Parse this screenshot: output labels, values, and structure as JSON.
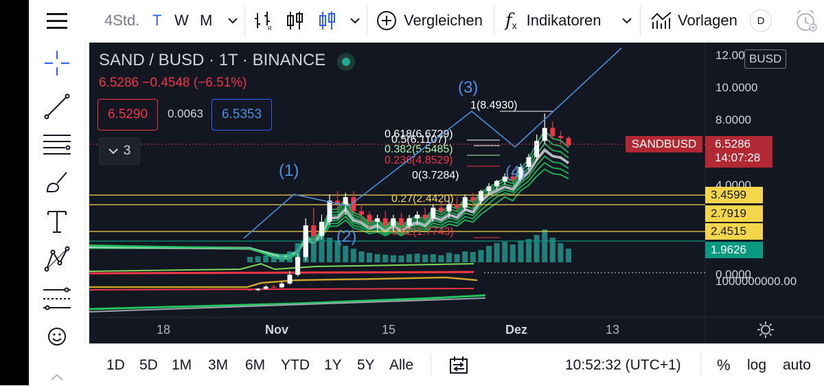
{
  "toolbar": {
    "interval": "4Std.",
    "quick_intervals": [
      "T",
      "W",
      "M"
    ],
    "compare_label": "Vergleichen",
    "indicators_label": "Indikatoren",
    "templates_label": "Vorlagen",
    "avatar_letter": "D"
  },
  "legend": {
    "title": "SAND / BUSD · 1T · BINANCE",
    "change": "6.5286 −0.4548 (−6.51%)",
    "bid": "6.5290",
    "spread": "0.0063",
    "ask": "6.5353",
    "indicator_count": "3"
  },
  "chart_data": {
    "type": "candlestick",
    "symbol": "SAND / BUSD",
    "interval": "1T",
    "exchange": "BINANCE",
    "last_price": 6.5286,
    "change": -0.4548,
    "change_percent": -6.51,
    "y_axis_labels": [
      "12.00",
      "10.0000",
      "8.0000",
      "4.0000",
      "0.0000",
      "1000000000.00"
    ],
    "x_axis_labels": [
      "18",
      "Nov",
      "15",
      "Dez",
      "13"
    ],
    "candles": [
      {
        "o": 0.78,
        "h": 0.8,
        "l": 0.74,
        "c": 0.76
      },
      {
        "o": 0.76,
        "h": 0.82,
        "l": 0.74,
        "c": 0.8
      },
      {
        "o": 0.8,
        "h": 0.9,
        "l": 0.78,
        "c": 0.86
      },
      {
        "o": 0.86,
        "h": 0.92,
        "l": 0.82,
        "c": 0.84
      },
      {
        "o": 0.84,
        "h": 1.0,
        "l": 0.82,
        "c": 0.95
      },
      {
        "o": 0.95,
        "h": 1.3,
        "l": 0.92,
        "c": 1.2
      },
      {
        "o": 1.2,
        "h": 1.8,
        "l": 1.15,
        "c": 1.7
      },
      {
        "o": 1.7,
        "h": 2.8,
        "l": 1.6,
        "c": 2.6
      },
      {
        "o": 2.6,
        "h": 3.1,
        "l": 2.1,
        "c": 2.3
      },
      {
        "o": 2.3,
        "h": 2.9,
        "l": 2.2,
        "c": 2.7
      },
      {
        "o": 2.7,
        "h": 3.5,
        "l": 2.6,
        "c": 3.3
      },
      {
        "o": 3.3,
        "h": 3.7,
        "l": 3.0,
        "c": 3.2
      },
      {
        "o": 3.2,
        "h": 3.6,
        "l": 2.9,
        "c": 3.4
      },
      {
        "o": 3.4,
        "h": 3.7,
        "l": 2.9,
        "c": 3.0
      },
      {
        "o": 3.0,
        "h": 3.2,
        "l": 2.7,
        "c": 2.9
      },
      {
        "o": 2.9,
        "h": 3.0,
        "l": 2.5,
        "c": 2.7
      },
      {
        "o": 2.7,
        "h": 2.9,
        "l": 2.4,
        "c": 2.8
      },
      {
        "o": 2.8,
        "h": 3.0,
        "l": 2.5,
        "c": 2.6
      },
      {
        "o": 2.6,
        "h": 2.9,
        "l": 2.4,
        "c": 2.8
      },
      {
        "o": 2.8,
        "h": 2.95,
        "l": 2.5,
        "c": 2.6
      },
      {
        "o": 2.6,
        "h": 2.9,
        "l": 2.5,
        "c": 2.8
      },
      {
        "o": 2.8,
        "h": 3.0,
        "l": 2.6,
        "c": 2.9
      },
      {
        "o": 2.9,
        "h": 3.1,
        "l": 2.7,
        "c": 2.8
      },
      {
        "o": 2.8,
        "h": 3.2,
        "l": 2.7,
        "c": 3.1
      },
      {
        "o": 3.1,
        "h": 3.3,
        "l": 2.9,
        "c": 3.0
      },
      {
        "o": 3.0,
        "h": 3.3,
        "l": 2.8,
        "c": 3.2
      },
      {
        "o": 3.2,
        "h": 3.4,
        "l": 3.0,
        "c": 3.1
      },
      {
        "o": 3.1,
        "h": 3.5,
        "l": 3.0,
        "c": 3.4
      },
      {
        "o": 3.4,
        "h": 3.6,
        "l": 3.1,
        "c": 3.3
      },
      {
        "o": 3.3,
        "h": 3.8,
        "l": 3.2,
        "c": 3.7
      },
      {
        "o": 3.7,
        "h": 4.2,
        "l": 3.5,
        "c": 4.0
      },
      {
        "o": 4.0,
        "h": 4.4,
        "l": 3.8,
        "c": 4.3
      },
      {
        "o": 4.3,
        "h": 4.8,
        "l": 4.1,
        "c": 4.6
      },
      {
        "o": 4.6,
        "h": 5.0,
        "l": 4.2,
        "c": 4.4
      },
      {
        "o": 4.4,
        "h": 5.4,
        "l": 4.3,
        "c": 5.2
      },
      {
        "o": 5.2,
        "h": 6.0,
        "l": 5.0,
        "c": 5.8
      },
      {
        "o": 5.8,
        "h": 7.2,
        "l": 5.6,
        "c": 6.8
      },
      {
        "o": 6.8,
        "h": 8.49,
        "l": 6.6,
        "c": 7.6
      },
      {
        "o": 7.6,
        "h": 8.0,
        "l": 6.9,
        "c": 7.1
      },
      {
        "o": 7.1,
        "h": 7.4,
        "l": 6.6,
        "c": 6.98
      },
      {
        "o": 6.98,
        "h": 7.1,
        "l": 6.4,
        "c": 6.53
      }
    ],
    "volumes": [
      20,
      22,
      25,
      24,
      30,
      40,
      70,
      110,
      120,
      100,
      90,
      80,
      60,
      50,
      40,
      35,
      30,
      28,
      26,
      25,
      30,
      32,
      28,
      30,
      26,
      35,
      30,
      40,
      38,
      45,
      60,
      70,
      75,
      65,
      80,
      85,
      100,
      120,
      90,
      70,
      50
    ],
    "fibonacci": [
      {
        "level": "1",
        "price": 8.493,
        "color": "#ffffff"
      },
      {
        "level": "0.618",
        "price": 6.6729,
        "color": "#ffffff"
      },
      {
        "level": "0.5",
        "price": 6.1107,
        "color": "#ffffff"
      },
      {
        "level": "0.382",
        "price": 5.5485,
        "color": "#aef5a8"
      },
      {
        "level": "0.236",
        "price": 4.8529,
        "color": "#f23645"
      },
      {
        "level": "0",
        "price": 3.7284,
        "color": "#ffffff"
      },
      {
        "level": "0.27",
        "price": 2.442,
        "color": "#f5d64b"
      },
      {
        "level": "0.62",
        "price": 1.7743,
        "color": "#f23645"
      }
    ],
    "horizontal_levels": [
      {
        "price": 3.4599,
        "color": "#f5d64b"
      },
      {
        "price": 2.7919,
        "color": "#f5d64b"
      },
      {
        "price": 2.4515,
        "color": "#f5d64b"
      },
      {
        "price": 1.9626,
        "color": "#089981"
      }
    ],
    "waves": [
      "(1)",
      "(2)",
      "(3)",
      "(4)"
    ],
    "price_tags": {
      "symbol_tag": "SANDBUSD",
      "last": "6.5286",
      "countdown": "14:07:28",
      "currency": "BUSD",
      "l1": "3.4599",
      "l2": "2.7919",
      "l3": "2.4515",
      "l4": "1.9626"
    },
    "colors": {
      "background": "#131722",
      "up": "#ffffff",
      "down": "#f23645",
      "wave_line": "#4a90d9",
      "wave_label": "#4f8fe0",
      "level_line": "#f5d64b",
      "ema_ribbon": "#22c55e",
      "volume": "#26a69a"
    }
  },
  "bottom": {
    "ranges": [
      "1D",
      "5D",
      "1M",
      "3M",
      "6M",
      "YTD",
      "1Y",
      "5Y",
      "Alle"
    ],
    "time": "10:52:32 (UTC+1)",
    "percent": "%",
    "log": "log",
    "auto": "auto"
  }
}
